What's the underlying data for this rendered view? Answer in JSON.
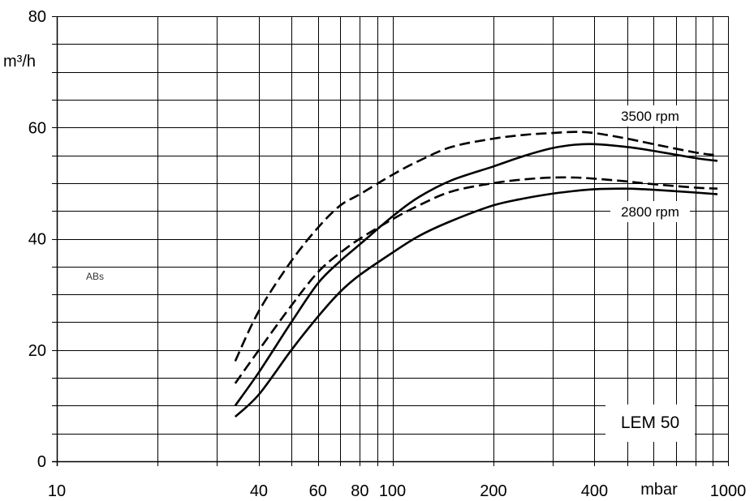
{
  "chart_data": {
    "type": "line",
    "title": "",
    "xlabel": "mbar",
    "ylabel": "m³/h",
    "x_scale": "log",
    "xlim": [
      10,
      1000
    ],
    "ylim": [
      0,
      80
    ],
    "grid": true,
    "x_tick_labels": [
      "10",
      "40",
      "60",
      "80",
      "100",
      "200",
      "400",
      "1000"
    ],
    "y_tick_labels": [
      "0",
      "20",
      "40",
      "60",
      "80"
    ],
    "annotations": [
      "3500 rpm",
      "2800 rpm",
      "LEM 50",
      "ABs"
    ],
    "series": [
      {
        "style": "dashed",
        "x": [
          34,
          40,
          50,
          60,
          70,
          80,
          100,
          120,
          150,
          200,
          250,
          300,
          350,
          400,
          500,
          600,
          800,
          930
        ],
        "y": [
          18,
          27,
          36,
          42,
          46,
          48,
          51.5,
          54,
          56.5,
          58,
          58.7,
          59,
          59.2,
          59,
          58,
          57,
          55.5,
          55
        ]
      },
      {
        "style": "solid",
        "x": [
          34,
          40,
          50,
          60,
          70,
          80,
          100,
          120,
          150,
          200,
          250,
          300,
          350,
          400,
          500,
          600,
          800,
          930
        ],
        "y": [
          10,
          16,
          25,
          32,
          36,
          39,
          44,
          47.5,
          50.5,
          53,
          55,
          56.3,
          56.9,
          57,
          56.5,
          55.8,
          54.5,
          54
        ]
      },
      {
        "style": "dashed",
        "x": [
          34,
          40,
          50,
          60,
          70,
          80,
          100,
          120,
          150,
          200,
          250,
          300,
          350,
          400,
          500,
          600,
          800,
          930
        ],
        "y": [
          14,
          20,
          28,
          34,
          37.5,
          40,
          43.5,
          46,
          48.5,
          50,
          50.7,
          51,
          51,
          50.8,
          50.3,
          49.8,
          49.2,
          49
        ]
      },
      {
        "style": "solid",
        "x": [
          34,
          40,
          50,
          60,
          70,
          80,
          100,
          120,
          150,
          200,
          250,
          300,
          350,
          400,
          500,
          600,
          800,
          930
        ],
        "y": [
          8,
          12,
          20,
          26,
          30.5,
          33.5,
          37.5,
          40.5,
          43.2,
          46,
          47.3,
          48.1,
          48.6,
          48.9,
          49,
          48.8,
          48.3,
          48
        ]
      }
    ]
  }
}
